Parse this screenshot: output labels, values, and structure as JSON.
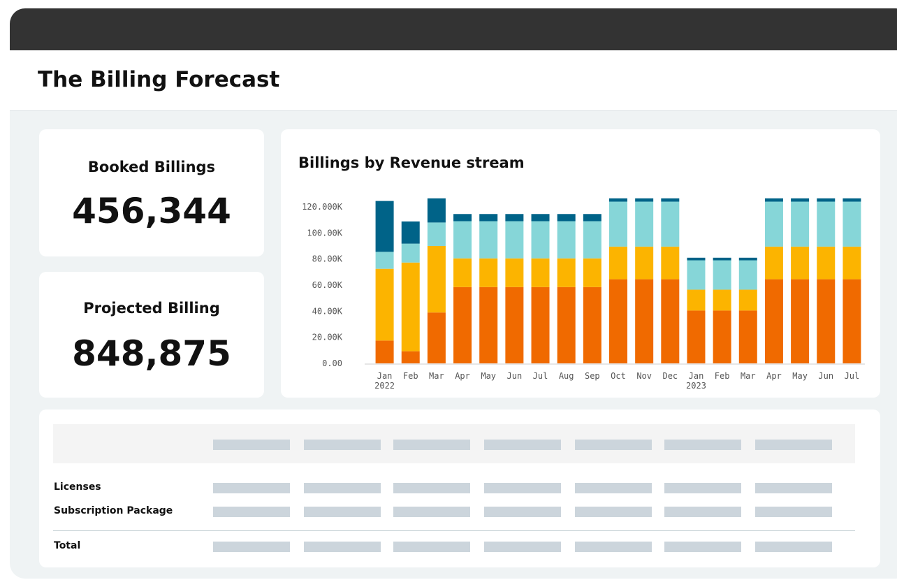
{
  "header": {
    "title": "The Billing Forecast"
  },
  "kpis": [
    {
      "label": "Booked Billings",
      "value": "456,344"
    },
    {
      "label": "Projected Billing",
      "value": "848,875"
    }
  ],
  "chart_data": {
    "type": "stacked_bar",
    "title": "Billings by Revenue stream",
    "categories": [
      "Jan 2022",
      "Feb",
      "Mar",
      "Apr",
      "May",
      "Jun",
      "Jul",
      "Aug",
      "Sep",
      "Oct",
      "Nov",
      "Dec",
      "Jan 2023",
      "Feb",
      "Mar",
      "Apr",
      "May",
      "Jun",
      "Jul"
    ],
    "series": [
      {
        "color": "#f06a00",
        "values": [
          17.5,
          9.3,
          39,
          58.5,
          58.5,
          58.5,
          58.5,
          58.5,
          58.5,
          64.5,
          64.5,
          64.5,
          40.5,
          40.5,
          40.5,
          64.5,
          64.5,
          64.5,
          64.5
        ]
      },
      {
        "color": "#fcb400",
        "values": [
          55,
          68,
          51,
          22,
          22,
          22,
          22,
          22,
          22,
          25,
          25,
          25,
          16,
          16,
          16,
          25,
          25,
          25,
          25
        ]
      },
      {
        "color": "#86d6d8",
        "values": [
          13,
          14.5,
          18,
          28.5,
          28.5,
          28.5,
          28.5,
          28.5,
          28.5,
          34.5,
          34.5,
          34.5,
          22.5,
          22.5,
          22.5,
          34.5,
          34.5,
          34.5,
          34.5
        ]
      },
      {
        "color": "#006388",
        "values": [
          39,
          17,
          18.5,
          5.5,
          5.5,
          5.5,
          5.5,
          5.5,
          5.5,
          2.5,
          2.5,
          2.5,
          2,
          2,
          2,
          2.5,
          2.5,
          2.5,
          2.5
        ]
      }
    ],
    "ylim": [
      0,
      120
    ],
    "yticks": [
      {
        "value": 0,
        "label": "0.00"
      },
      {
        "value": 20,
        "label": "20.00K"
      },
      {
        "value": 40,
        "label": "40.00K"
      },
      {
        "value": 60,
        "label": "60.00K"
      },
      {
        "value": 80,
        "label": "80.00K"
      },
      {
        "value": 100,
        "label": "100.00K"
      },
      {
        "value": 120,
        "label": "120.000K"
      }
    ]
  },
  "table": {
    "rows": [
      "Licenses",
      "Subscription Package",
      "Total"
    ]
  }
}
